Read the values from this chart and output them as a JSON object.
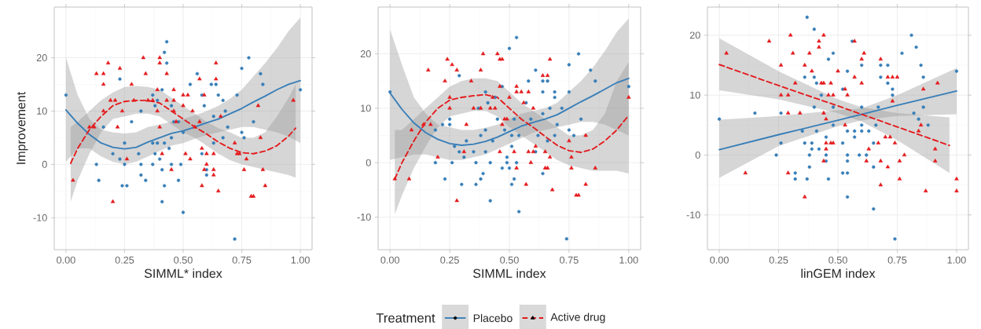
{
  "chart_data": [
    {
      "type": "scatter",
      "xlabel": "SIMML* index",
      "ylabel": "Improvement",
      "xlim": [
        -0.05,
        1.05
      ],
      "ylim": [
        -16,
        29.5
      ],
      "xticks": [
        {
          "value": 0,
          "label": "0.00"
        },
        {
          "value": 0.25,
          "label": "0.25"
        },
        {
          "value": 0.5,
          "label": "0.50"
        },
        {
          "value": 0.75,
          "label": "0.75"
        },
        {
          "value": 1,
          "label": "1.00"
        }
      ],
      "yticks": [
        -10,
        0,
        10,
        20
      ],
      "grid": true,
      "series": [
        {
          "color": "#377eb8",
          "marker": "circle",
          "x": [
            0,
            0.23,
            0.13,
            0.14,
            0.16,
            0.24,
            0.26,
            0.25,
            0.25,
            0.28,
            0.2,
            0.23,
            0.31,
            0.32,
            0.32,
            0.34,
            0.32,
            0.37,
            0.37,
            0.38,
            0.37,
            0.39,
            0.38,
            0.39,
            0.4,
            0.41,
            0.41,
            0.41,
            0.43,
            0.42,
            0.43,
            0.42,
            0.42,
            0.44,
            0.45,
            0.45,
            0.46,
            0.45,
            0.49,
            0.48,
            0.5,
            0.48,
            0.5,
            0.53,
            0.56,
            0.58,
            0.59,
            0.58,
            0.6,
            0.6,
            0.62,
            0.63,
            0.63,
            0.64,
            0.65,
            0.67,
            0.67,
            0.68,
            0.69,
            0.72,
            0.73,
            0.75,
            0.75,
            0.76,
            0.78,
            0.8,
            0.83,
            0.84,
            1.0
          ],
          "values": [
            13,
            16,
            0,
            -3,
            7,
            -4,
            -4,
            4,
            0,
            8,
            2,
            1,
            2,
            0,
            -2,
            -3,
            10,
            0,
            13,
            11,
            4,
            4,
            2,
            12,
            1,
            14,
            -1,
            -7,
            23,
            21,
            19,
            4,
            -4,
            3,
            0,
            11,
            8,
            5,
            0,
            -3,
            -9,
            8,
            6,
            15,
            17,
            2,
            11,
            13,
            -1,
            -2,
            15,
            9,
            4,
            15,
            13,
            12,
            5,
            10,
            7,
            -14,
            13,
            18,
            6,
            5,
            20,
            8,
            17,
            15,
            14
          ]
        },
        {
          "color": "#e41a1c",
          "marker": "triangle",
          "x": [
            0.03,
            0.13,
            0.16,
            0.16,
            0.18,
            0.19,
            0.21,
            0.2,
            0.22,
            0.23,
            0.24,
            0.28,
            0.26,
            0.1,
            0.12,
            0.16,
            0.33,
            0.34,
            0.29,
            0.35,
            0.37,
            0.4,
            0.4,
            0.39,
            0.39,
            0.4,
            0.41,
            0.43,
            0.43,
            0.45,
            0.46,
            0.46,
            0.46,
            0.47,
            0.5,
            0.5,
            0.52,
            0.51,
            0.53,
            0.54,
            0.55,
            0.57,
            0.57,
            0.58,
            0.58,
            0.59,
            0.6,
            0.6,
            0.59,
            0.63,
            0.63,
            0.63,
            0.64,
            0.64,
            0.65,
            0.66,
            0.72,
            0.73,
            0.74,
            0.76,
            0.77,
            0.79,
            0.8,
            0.82,
            0.83,
            0.84,
            0.85,
            0.97
          ],
          "values": [
            -3,
            17,
            17,
            15,
            19,
            12,
            12,
            -7,
            7,
            18,
            10,
            15,
            1,
            7,
            7,
            10,
            20,
            17,
            12,
            12,
            12,
            20,
            19,
            14,
            10,
            7,
            2,
            17,
            12,
            -1,
            12,
            14,
            10,
            8,
            11,
            13,
            13,
            2,
            1,
            10,
            7,
            16,
            8,
            -4,
            3,
            13,
            2,
            0,
            -1,
            2,
            -1,
            -2,
            19,
            16,
            -5,
            9,
            4,
            2,
            2,
            -1,
            1,
            -6,
            -6,
            11,
            5,
            -1,
            -4,
            12
          ]
        },
        {
          "type": "line",
          "color": "#377eb8",
          "line_style": "solid",
          "x": [
            0,
            0.05,
            0.1,
            0.15,
            0.2,
            0.25,
            0.3,
            0.35,
            0.4,
            0.45,
            0.5,
            0.55,
            0.6,
            0.65,
            0.7,
            0.75,
            0.8,
            0.85,
            0.9,
            0.95,
            1.0
          ],
          "values": [
            10.2,
            7.7,
            5.6,
            4.0,
            3.2,
            2.9,
            3.2,
            4.2,
            5.0,
            5.8,
            6.3,
            7.0,
            7.8,
            8.5,
            9.5,
            10.5,
            11.7,
            12.8,
            14,
            15,
            15.7
          ],
          "lower": [
            0.5,
            3,
            3,
            1.5,
            0.5,
            0,
            0.5,
            1.5,
            2.5,
            3.5,
            4,
            4.8,
            5.5,
            6,
            6.5,
            7,
            7,
            6.5,
            6,
            5.2,
            4
          ],
          "upper": [
            20,
            13,
            8.5,
            6.5,
            6,
            5.8,
            6,
            7,
            7.5,
            8,
            8.5,
            9.2,
            10,
            11,
            12.3,
            14,
            16.5,
            19,
            21.8,
            25,
            27.5
          ]
        },
        {
          "type": "line",
          "color": "#e41a1c",
          "line_style": "dashed",
          "x": [
            0.02,
            0.05,
            0.1,
            0.15,
            0.2,
            0.25,
            0.3,
            0.35,
            0.4,
            0.45,
            0.5,
            0.55,
            0.6,
            0.65,
            0.7,
            0.75,
            0.8,
            0.85,
            0.9,
            0.95,
            0.98
          ],
          "values": [
            0.2,
            3.0,
            6.5,
            9,
            11,
            11.8,
            12,
            12,
            11.5,
            10,
            8.5,
            7.0,
            5.7,
            4.2,
            3.0,
            2.2,
            2.0,
            2.5,
            3.5,
            5.3,
            6.8
          ],
          "lower": [
            -7,
            -3,
            2,
            6,
            8.5,
            9,
            9.5,
            9.5,
            9,
            7.5,
            6,
            5,
            3.5,
            2,
            0.8,
            0,
            -0.5,
            -1,
            -1.5,
            -2,
            -2.5
          ],
          "upper": [
            7,
            8,
            10,
            12,
            13.5,
            14.5,
            14.7,
            14.5,
            14,
            12.5,
            11,
            9.5,
            8,
            6.8,
            6,
            5,
            5,
            6,
            9,
            12.5,
            15
          ]
        }
      ]
    },
    {
      "type": "scatter",
      "xlabel": "SIMML index",
      "xlim": [
        -0.05,
        1.05
      ],
      "ylim": [
        -16,
        28.6
      ],
      "xticks": [
        {
          "value": 0,
          "label": "0.00"
        },
        {
          "value": 0.25,
          "label": "0.25"
        },
        {
          "value": 0.5,
          "label": "0.50"
        },
        {
          "value": 0.75,
          "label": "0.75"
        },
        {
          "value": 1,
          "label": "1.00"
        }
      ],
      "yticks": [
        -10,
        0,
        10,
        20
      ],
      "grid": true,
      "legend": "bottom",
      "legend_title": "Treatment",
      "series": [
        {
          "name": "Placebo",
          "color": "#377eb8",
          "marker": "circle",
          "x": [
            0,
            0.19,
            0.19,
            0.22,
            0.23,
            0.25,
            0.25,
            0.26,
            0.27,
            0.29,
            0.3,
            0.29,
            0.31,
            0.32,
            0.35,
            0.36,
            0.36,
            0.37,
            0.38,
            0.39,
            0.38,
            0.4,
            0.4,
            0.4,
            0.41,
            0.42,
            0.42,
            0.43,
            0.44,
            0.45,
            0.47,
            0.47,
            0.48,
            0.49,
            0.49,
            0.5,
            0.5,
            0.51,
            0.51,
            0.51,
            0.52,
            0.52,
            0.53,
            0.53,
            0.54,
            0.54,
            0.57,
            0.58,
            0.59,
            0.61,
            0.61,
            0.62,
            0.64,
            0.66,
            0.64,
            0.64,
            0.64,
            0.66,
            0.67,
            0.69,
            0.69,
            0.69,
            0.7,
            0.72,
            0.74,
            0.75,
            0.75,
            0.75,
            0.77,
            0.79,
            0.8,
            0.84,
            0.86,
            1.0
          ],
          "values": [
            13,
            6,
            0,
            7,
            -3,
            7,
            8,
            0,
            3,
            16,
            -4,
            2,
            1,
            4,
            2,
            -4,
            0,
            10,
            -3,
            -2,
            5,
            2,
            6,
            13,
            11,
            -7,
            0,
            4,
            12,
            8,
            -1,
            14,
            6,
            1,
            0,
            -1,
            21,
            -4,
            3,
            5,
            8,
            -3,
            23,
            0,
            -9,
            5,
            11,
            15,
            8,
            17,
            2,
            5,
            15,
            15,
            13,
            -2,
            9,
            4,
            10,
            13,
            12,
            5,
            7,
            10,
            -14,
            18,
            13,
            6,
            5,
            20,
            8,
            17,
            15,
            14
          ]
        },
        {
          "name": "Active drug",
          "color": "#e41a1c",
          "marker": "triangle",
          "x": [
            0.02,
            0.09,
            0.08,
            0.16,
            0.14,
            0.17,
            0.2,
            0.23,
            0.24,
            0.26,
            0.28,
            0.25,
            0.25,
            0.28,
            0.31,
            0.32,
            0.34,
            0.35,
            0.38,
            0.39,
            0.38,
            0.42,
            0.44,
            0.43,
            0.45,
            0.46,
            0.47,
            0.46,
            0.46,
            0.47,
            0.48,
            0.49,
            0.5,
            0.52,
            0.53,
            0.53,
            0.55,
            0.53,
            0.56,
            0.57,
            0.58,
            0.58,
            0.6,
            0.59,
            0.6,
            0.61,
            0.64,
            0.66,
            0.65,
            0.66,
            0.65,
            0.67,
            0.67,
            0.68,
            0.75,
            0.76,
            0.76,
            0.78,
            0.79,
            0.82,
            0.82,
            0.86,
            1.0
          ],
          "values": [
            -3,
            6,
            -3,
            17,
            7,
            7,
            1,
            15,
            19,
            18,
            17,
            12,
            10,
            -7,
            2,
            7,
            15,
            10,
            17,
            20,
            10,
            10,
            10,
            12,
            20,
            19,
            19,
            14,
            2,
            7,
            8,
            8,
            12,
            2,
            14,
            13,
            13,
            -1,
            11,
            -4,
            13,
            2,
            2,
            0,
            10,
            3,
            16,
            16,
            -1,
            -1,
            2,
            1,
            19,
            -5,
            4,
            1,
            -1,
            -6,
            -6,
            -4,
            5,
            -1,
            12
          ]
        },
        {
          "type": "line",
          "color": "#377eb8",
          "line_style": "solid",
          "x": [
            0,
            0.05,
            0.1,
            0.15,
            0.2,
            0.25,
            0.3,
            0.35,
            0.4,
            0.45,
            0.5,
            0.55,
            0.6,
            0.65,
            0.7,
            0.75,
            0.8,
            0.85,
            0.9,
            0.95,
            1.0
          ],
          "values": [
            12.8,
            9.8,
            7.3,
            5.5,
            4.3,
            3.5,
            3.2,
            3.4,
            3.9,
            4.7,
            5.7,
            6.7,
            7.4,
            8.0,
            8.8,
            10,
            11.2,
            12.3,
            13.5,
            14.7,
            15.5
          ],
          "lower": [
            0.5,
            1,
            1.5,
            1.5,
            1,
            0.5,
            0.5,
            1,
            1.5,
            2.5,
            3.5,
            4.5,
            5.5,
            6,
            6.5,
            7,
            7.5,
            7.5,
            7,
            6,
            5
          ],
          "upper": [
            24.5,
            18,
            12,
            9,
            7,
            6.5,
            6,
            6,
            6.4,
            7,
            8,
            9,
            9.5,
            10,
            11,
            13,
            15,
            17.5,
            20.5,
            24,
            26.5
          ]
        },
        {
          "type": "line",
          "color": "#e41a1c",
          "line_style": "dashed",
          "x": [
            0.02,
            0.05,
            0.1,
            0.15,
            0.2,
            0.25,
            0.3,
            0.35,
            0.4,
            0.45,
            0.5,
            0.55,
            0.6,
            0.65,
            0.7,
            0.75,
            0.8,
            0.85,
            0.9,
            0.95,
            1.0
          ],
          "values": [
            -3,
            0,
            4,
            7.5,
            10,
            11.5,
            12,
            12.3,
            12.5,
            12,
            10,
            8,
            6.5,
            4.8,
            3.2,
            2.2,
            1.9,
            2.5,
            4,
            6,
            8.7
          ],
          "lower": [
            -9.5,
            -6,
            -1,
            3,
            6.5,
            8.5,
            9,
            9.5,
            9.5,
            8.5,
            6.5,
            5,
            3.5,
            2,
            0.5,
            -0.5,
            -1,
            -1.5,
            -1.5,
            -1.5,
            -2
          ],
          "upper": [
            6,
            6,
            8,
            10,
            12,
            14,
            15,
            15.5,
            15.5,
            15,
            13,
            11,
            9.5,
            8,
            6.5,
            5,
            5,
            6,
            9,
            15,
            18.5
          ]
        }
      ]
    },
    {
      "type": "scatter",
      "xlabel": "linGEM index",
      "xlim": [
        -0.05,
        1.05
      ],
      "ylim": [
        -15.8,
        24.7
      ],
      "xticks": [
        {
          "value": 0,
          "label": "0.00"
        },
        {
          "value": 0.25,
          "label": "0.25"
        },
        {
          "value": 0.5,
          "label": "0.50"
        },
        {
          "value": 0.75,
          "label": "0.75"
        },
        {
          "value": 1,
          "label": "1.00"
        }
      ],
      "yticks": [
        -10,
        0,
        10,
        20
      ],
      "grid": true,
      "series": [
        {
          "color": "#377eb8",
          "marker": "circle",
          "x": [
            0,
            0.15,
            0.24,
            0.26,
            0.26,
            0.32,
            0.32,
            0.35,
            0.36,
            0.36,
            0.37,
            0.37,
            0.38,
            0.38,
            0.39,
            0.39,
            0.4,
            0.4,
            0.41,
            0.4,
            0.41,
            0.42,
            0.43,
            0.45,
            0.45,
            0.45,
            0.46,
            0.46,
            0.48,
            0.48,
            0.48,
            0.52,
            0.52,
            0.52,
            0.54,
            0.54,
            0.54,
            0.54,
            0.54,
            0.54,
            0.57,
            0.56,
            0.57,
            0.59,
            0.6,
            0.6,
            0.6,
            0.6,
            0.62,
            0.63,
            0.65,
            0.65,
            0.65,
            0.66,
            0.67,
            0.68,
            0.68,
            0.71,
            0.71,
            0.73,
            0.73,
            0.74,
            0.77,
            0.81,
            0.82,
            0.83,
            0.84,
            0.85,
            0.86,
            0.86,
            0.88,
            1.0
          ],
          "values": [
            6,
            7,
            0,
            7,
            2,
            -4,
            -3,
            4,
            13,
            2,
            -4,
            23,
            0,
            -2,
            1,
            2,
            13,
            8,
            4,
            21,
            12,
            1,
            10,
            3,
            0,
            -1,
            16,
            -4,
            17,
            5,
            8,
            2,
            11,
            -3,
            4,
            0,
            -1,
            -7,
            14,
            -3,
            3,
            19,
            4,
            0,
            4,
            8,
            15,
            5,
            0,
            4,
            -9,
            -2,
            2,
            5,
            8,
            15,
            13,
            12,
            15,
            10,
            11,
            -14,
            17,
            20,
            7,
            18,
            6,
            15,
            8,
            13,
            5,
            14
          ]
        },
        {
          "color": "#e41a1c",
          "marker": "triangle",
          "x": [
            0.03,
            0.11,
            0.21,
            0.26,
            0.26,
            0.29,
            0.29,
            0.29,
            0.3,
            0.31,
            0.32,
            0.34,
            0.36,
            0.36,
            0.38,
            0.39,
            0.42,
            0.42,
            0.43,
            0.44,
            0.44,
            0.44,
            0.45,
            0.45,
            0.44,
            0.45,
            0.46,
            0.47,
            0.47,
            0.48,
            0.48,
            0.5,
            0.53,
            0.53,
            0.54,
            0.57,
            0.57,
            0.6,
            0.6,
            0.61,
            0.62,
            0.63,
            0.67,
            0.68,
            0.68,
            0.68,
            0.7,
            0.71,
            0.71,
            0.72,
            0.73,
            0.75,
            0.73,
            0.74,
            0.76,
            0.76,
            0.78,
            0.84,
            0.85,
            0.86,
            0.87,
            0.91,
            0.92,
            0.91,
            1.0,
            1.0
          ],
          "values": [
            17,
            -3,
            19,
            15,
            10,
            10,
            7,
            -3,
            20,
            17,
            12,
            7,
            -7,
            15,
            17,
            14,
            19,
            18,
            12,
            12,
            20,
            7,
            2,
            1,
            -1,
            6,
            10,
            12,
            2,
            2,
            10,
            14,
            11,
            5,
            10,
            19,
            13,
            16,
            12,
            17,
            -1,
            1,
            2,
            -5,
            16,
            -1,
            3,
            13,
            -2,
            3,
            13,
            13,
            9,
            2,
            -1,
            -4,
            0,
            4,
            5,
            11,
            -6,
            1,
            12,
            -1,
            -4,
            -6
          ]
        },
        {
          "type": "line",
          "color": "#377eb8",
          "line_style": "solid",
          "x": [
            0,
            0.25,
            0.5,
            0.6,
            0.75,
            1.0
          ],
          "values": [
            0.9,
            3.4,
            5.8,
            6.8,
            8.3,
            10.7
          ],
          "lower": [
            -3.8,
            1.5,
            4.8,
            5.8,
            6.5,
            6.8
          ],
          "upper": [
            5.9,
            6.5,
            7.5,
            7.8,
            10,
            14.5
          ]
        },
        {
          "type": "line",
          "color": "#e41a1c",
          "line_style": "dashed",
          "x": [
            0,
            0.25,
            0.5,
            0.6,
            0.75,
            0.97
          ],
          "values": [
            15.1,
            11.6,
            8.2,
            6.8,
            4.7,
            1.6
          ],
          "lower": [
            10.8,
            9.3,
            7,
            5.6,
            2.5,
            -3
          ],
          "upper": [
            19.5,
            14,
            9.3,
            8,
            7,
            6.3
          ]
        }
      ]
    }
  ]
}
